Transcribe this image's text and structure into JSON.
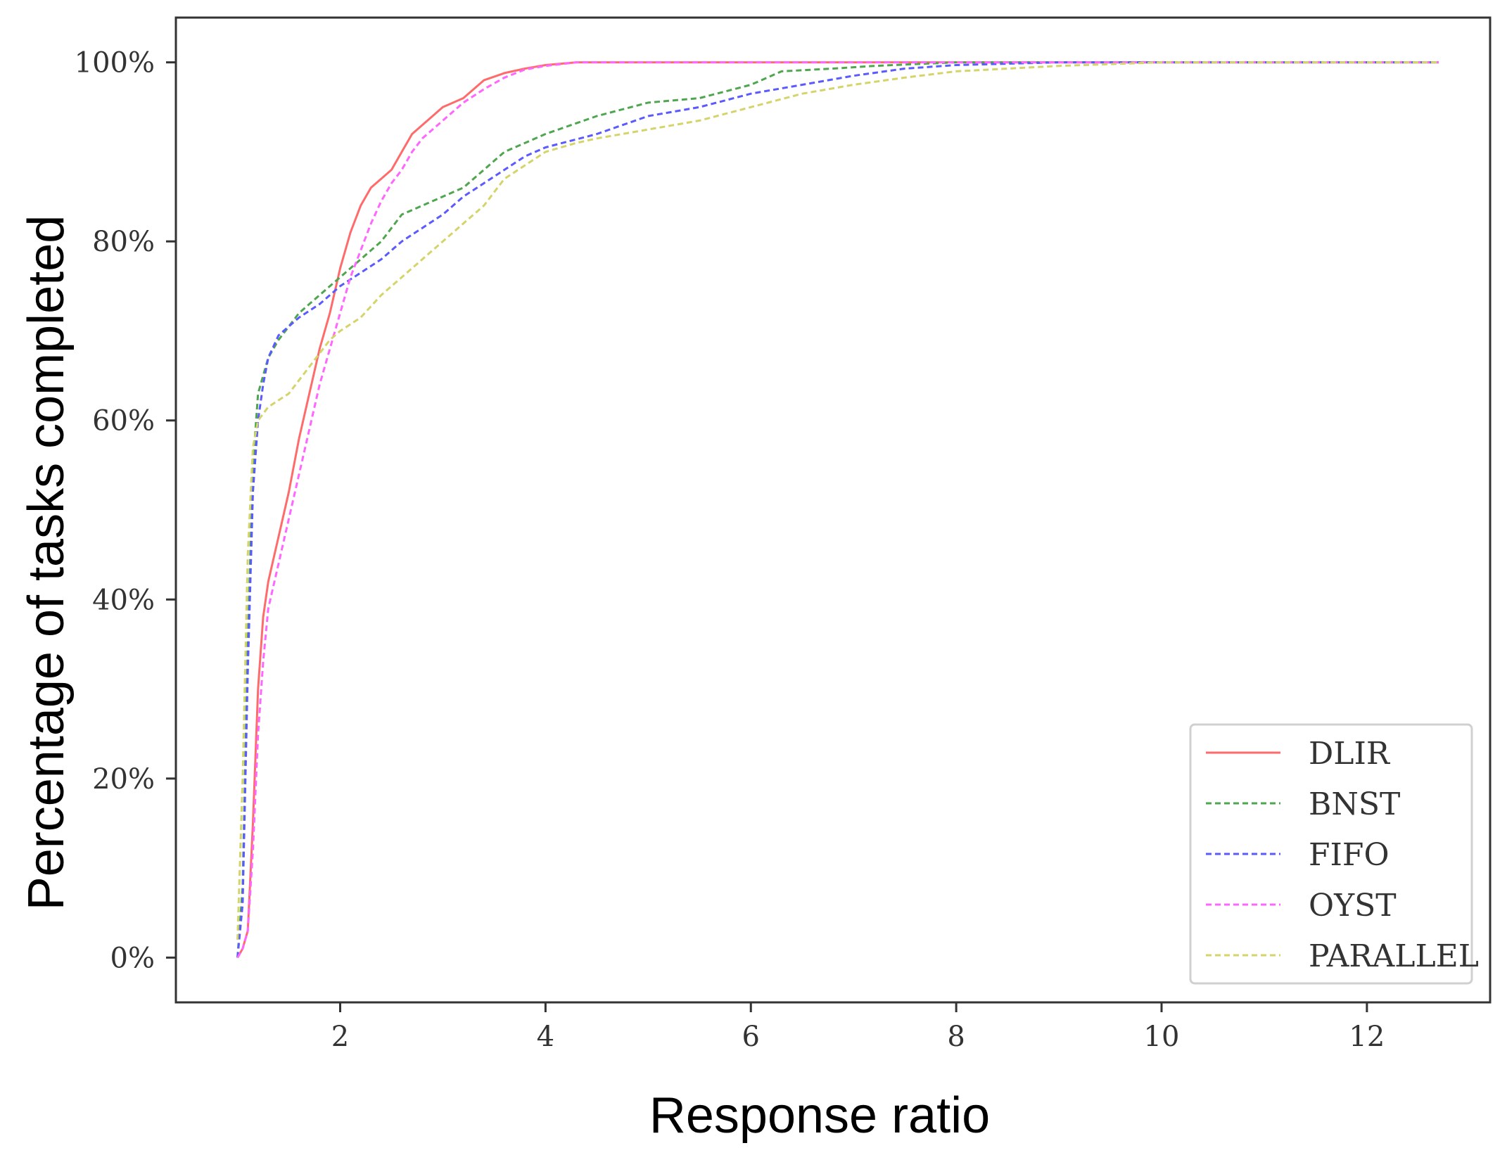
{
  "chart_data": {
    "type": "line",
    "xlabel": "Response ratio",
    "ylabel": "Percentage of tasks completed",
    "xlim": [
      0.4,
      13.2
    ],
    "ylim": [
      -5,
      105
    ],
    "x_ticks": [
      2,
      4,
      6,
      8,
      10,
      12
    ],
    "y_ticks": [
      0,
      20,
      40,
      60,
      80,
      100
    ],
    "x_tick_labels": [
      "2",
      "4",
      "6",
      "8",
      "10",
      "12"
    ],
    "y_tick_labels": [
      "0%",
      "20%",
      "40%",
      "60%",
      "80%",
      "100%"
    ],
    "grid": false,
    "legend_position": "bottom-right",
    "series": [
      {
        "name": "DLIR",
        "color": "#ff6b6b",
        "dash": "solid",
        "points": [
          [
            1.0,
            0
          ],
          [
            1.05,
            1
          ],
          [
            1.1,
            3
          ],
          [
            1.15,
            15
          ],
          [
            1.2,
            30
          ],
          [
            1.25,
            38
          ],
          [
            1.3,
            42
          ],
          [
            1.4,
            47
          ],
          [
            1.5,
            52
          ],
          [
            1.6,
            58
          ],
          [
            1.7,
            63
          ],
          [
            1.8,
            68
          ],
          [
            1.9,
            72
          ],
          [
            2.0,
            77
          ],
          [
            2.1,
            81
          ],
          [
            2.2,
            84
          ],
          [
            2.3,
            86
          ],
          [
            2.4,
            87
          ],
          [
            2.5,
            88
          ],
          [
            2.6,
            90
          ],
          [
            2.7,
            92
          ],
          [
            2.8,
            93
          ],
          [
            3.0,
            95
          ],
          [
            3.2,
            96
          ],
          [
            3.4,
            98
          ],
          [
            3.6,
            98.8
          ],
          [
            3.8,
            99.3
          ],
          [
            4.0,
            99.7
          ],
          [
            4.3,
            100
          ],
          [
            12.7,
            100
          ]
        ]
      },
      {
        "name": "BNST",
        "color": "#4fa64f",
        "dash": "dashed",
        "points": [
          [
            1.0,
            0
          ],
          [
            1.05,
            8
          ],
          [
            1.1,
            35
          ],
          [
            1.15,
            55
          ],
          [
            1.2,
            63
          ],
          [
            1.25,
            65
          ],
          [
            1.3,
            67
          ],
          [
            1.4,
            69
          ],
          [
            1.6,
            72
          ],
          [
            1.8,
            74
          ],
          [
            2.0,
            76
          ],
          [
            2.2,
            78
          ],
          [
            2.4,
            80
          ],
          [
            2.6,
            83
          ],
          [
            2.8,
            84
          ],
          [
            3.0,
            85
          ],
          [
            3.2,
            86
          ],
          [
            3.4,
            88
          ],
          [
            3.6,
            90
          ],
          [
            3.8,
            91
          ],
          [
            4.0,
            92
          ],
          [
            4.5,
            94
          ],
          [
            5.0,
            95.5
          ],
          [
            5.5,
            96
          ],
          [
            6.0,
            97.5
          ],
          [
            6.3,
            99
          ],
          [
            6.8,
            99.3
          ],
          [
            7.2,
            99.6
          ],
          [
            8.0,
            100
          ],
          [
            12.7,
            100
          ]
        ]
      },
      {
        "name": "FIFO",
        "color": "#5a5aff",
        "dash": "dashed",
        "points": [
          [
            1.0,
            0
          ],
          [
            1.05,
            6
          ],
          [
            1.1,
            32
          ],
          [
            1.15,
            52
          ],
          [
            1.2,
            60
          ],
          [
            1.25,
            64
          ],
          [
            1.3,
            67
          ],
          [
            1.4,
            69.5
          ],
          [
            1.6,
            71.5
          ],
          [
            1.8,
            73
          ],
          [
            2.0,
            75
          ],
          [
            2.2,
            76.5
          ],
          [
            2.4,
            78
          ],
          [
            2.6,
            80
          ],
          [
            2.8,
            81.5
          ],
          [
            3.0,
            83
          ],
          [
            3.2,
            85
          ],
          [
            3.4,
            86.5
          ],
          [
            3.6,
            88
          ],
          [
            3.8,
            89.5
          ],
          [
            4.0,
            90.5
          ],
          [
            4.5,
            92
          ],
          [
            5.0,
            94
          ],
          [
            5.5,
            95
          ],
          [
            6.0,
            96.5
          ],
          [
            6.5,
            97.5
          ],
          [
            7.0,
            98.5
          ],
          [
            7.5,
            99.3
          ],
          [
            8.0,
            99.7
          ],
          [
            9.0,
            100
          ],
          [
            12.7,
            100
          ]
        ]
      },
      {
        "name": "OYST",
        "color": "#ff66ff",
        "dash": "dashed",
        "points": [
          [
            1.0,
            0
          ],
          [
            1.05,
            1
          ],
          [
            1.1,
            3
          ],
          [
            1.15,
            12
          ],
          [
            1.2,
            25
          ],
          [
            1.25,
            33
          ],
          [
            1.3,
            39
          ],
          [
            1.4,
            44
          ],
          [
            1.5,
            49
          ],
          [
            1.6,
            54
          ],
          [
            1.7,
            59
          ],
          [
            1.8,
            64
          ],
          [
            1.9,
            68
          ],
          [
            2.0,
            72
          ],
          [
            2.1,
            76
          ],
          [
            2.2,
            79
          ],
          [
            2.3,
            82
          ],
          [
            2.4,
            84.5
          ],
          [
            2.5,
            86.5
          ],
          [
            2.6,
            88
          ],
          [
            2.7,
            90
          ],
          [
            2.8,
            91.5
          ],
          [
            3.0,
            93.5
          ],
          [
            3.2,
            95.5
          ],
          [
            3.4,
            97
          ],
          [
            3.6,
            98.3
          ],
          [
            3.8,
            99.2
          ],
          [
            4.0,
            99.6
          ],
          [
            4.3,
            100
          ],
          [
            12.7,
            100
          ]
        ]
      },
      {
        "name": "PARALLEL",
        "color": "#d4d46a",
        "dash": "dashed",
        "points": [
          [
            1.0,
            2
          ],
          [
            1.05,
            20
          ],
          [
            1.1,
            45
          ],
          [
            1.15,
            57
          ],
          [
            1.2,
            60
          ],
          [
            1.3,
            61.5
          ],
          [
            1.5,
            63
          ],
          [
            1.7,
            66
          ],
          [
            1.9,
            69
          ],
          [
            2.0,
            70
          ],
          [
            2.2,
            71.5
          ],
          [
            2.4,
            74
          ],
          [
            2.6,
            76
          ],
          [
            2.8,
            78
          ],
          [
            3.0,
            80
          ],
          [
            3.2,
            82
          ],
          [
            3.4,
            84
          ],
          [
            3.6,
            87
          ],
          [
            3.8,
            88.5
          ],
          [
            4.0,
            90
          ],
          [
            4.3,
            91
          ],
          [
            4.5,
            91.5
          ],
          [
            5.0,
            92.5
          ],
          [
            5.5,
            93.5
          ],
          [
            6.0,
            95
          ],
          [
            6.5,
            96.5
          ],
          [
            7.0,
            97.5
          ],
          [
            7.5,
            98.3
          ],
          [
            8.0,
            99
          ],
          [
            9.0,
            99.6
          ],
          [
            10.0,
            100
          ],
          [
            12.7,
            100
          ]
        ]
      }
    ]
  }
}
